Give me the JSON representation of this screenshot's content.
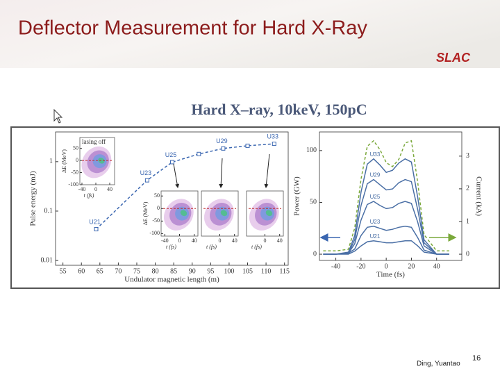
{
  "slide": {
    "title": "Deflector Measurement for Hard X-Ray",
    "logo": "SLAC",
    "figure_title": "Hard X–ray, 10keV, 150pC",
    "author": "Ding, Yuantao",
    "page": 16
  },
  "chart_data": [
    {
      "type": "line",
      "xlabel": "Undulator magnetic length (m)",
      "ylabel": "Pulse energy (mJ)",
      "x": [
        64,
        77.8,
        84.6,
        91.8,
        98.4,
        105,
        112.2
      ],
      "values": [
        0.043,
        0.42,
        0.98,
        1.43,
        1.85,
        2.1,
        2.3
      ],
      "point_labels": [
        "U21",
        "U23",
        "U25",
        null,
        "U29",
        null,
        "U33"
      ],
      "color": "#3a66b0",
      "dashed": true,
      "markers": true,
      "log_y": true,
      "xlim": [
        53,
        116
      ],
      "ylim": [
        0.008,
        4
      ],
      "xticks": [
        55,
        60,
        65,
        70,
        75,
        80,
        85,
        90,
        95,
        100,
        105,
        110,
        115
      ],
      "yticks": [
        0.01,
        0.1,
        1
      ],
      "insets": [
        {
          "label": "lasing off",
          "ylabel": "ΔE (MeV)",
          "xlabel": "t (fs)",
          "xlim": [
            -46,
            54
          ],
          "ylim": [
            -100,
            95
          ],
          "xticks": [
            -40,
            0,
            40
          ],
          "yticks": [
            50,
            0,
            -50,
            -100
          ]
        },
        {
          "ylabel": "ΔE (MeV)",
          "xlabel": "t (fs)",
          "xlim": [
            -50,
            50
          ],
          "ylim": [
            -110,
            70
          ],
          "xticks": [
            -40,
            0,
            40
          ],
          "yticks": [
            50,
            0,
            -50,
            -100
          ]
        },
        {
          "xlabel": "t (fs)",
          "xlim": [
            -50,
            50
          ],
          "ylim": [
            -110,
            70
          ],
          "xticks": [
            0,
            40
          ]
        },
        {
          "xlabel": "t (fs)",
          "xlim": [
            -50,
            50
          ],
          "ylim": [
            -110,
            70
          ],
          "xticks": [
            0,
            40
          ]
        }
      ]
    },
    {
      "type": "line",
      "xlabel": "Time (fs)",
      "ylabel": "Power (GW)",
      "y2label": "Current (kA)",
      "x": [
        -50,
        -40,
        -30,
        -25,
        -20,
        -15,
        -10,
        -5,
        0,
        5,
        10,
        15,
        20,
        25,
        30,
        40,
        50
      ],
      "series": [
        {
          "name": "U33",
          "color": "#4a6fa5",
          "values": [
            0,
            0,
            2,
            18,
            60,
            87,
            92,
            86,
            79,
            81,
            88,
            92,
            89,
            55,
            14,
            0,
            0
          ]
        },
        {
          "name": "U29",
          "color": "#4a6fa5",
          "values": [
            0,
            0,
            1,
            14,
            47,
            68,
            72,
            67,
            62,
            63,
            69,
            72,
            70,
            43,
            11,
            0,
            0
          ]
        },
        {
          "name": "U25",
          "color": "#4a6fa5",
          "values": [
            0,
            0,
            1,
            10,
            33,
            48,
            51,
            47,
            44,
            45,
            49,
            51,
            49,
            31,
            8,
            0,
            0
          ]
        },
        {
          "name": "U23",
          "color": "#4a6fa5",
          "values": [
            0,
            0,
            1,
            5,
            18,
            26,
            27,
            25,
            23,
            24,
            26,
            27,
            26,
            16,
            4,
            0,
            0
          ]
        },
        {
          "name": "U21",
          "color": "#4a6fa5",
          "values": [
            0,
            0,
            0,
            3,
            8,
            12,
            13,
            12,
            11,
            11,
            12,
            13,
            13,
            8,
            2,
            0,
            0
          ]
        },
        {
          "axis": "y2",
          "color": "#7aa83a",
          "dashed": true,
          "values": [
            0.1,
            0.1,
            0.15,
            0.8,
            2.3,
            3.3,
            3.47,
            3.2,
            2.8,
            2.68,
            2.9,
            3.4,
            3.47,
            2.2,
            0.6,
            0.1,
            0.1
          ]
        }
      ],
      "xlim": [
        -53,
        60
      ],
      "ylim": [
        -6,
        118
      ],
      "y2lim": [
        -0.19,
        3.74
      ],
      "xticks": [
        -40,
        -20,
        0,
        20,
        40
      ],
      "yticks": [
        0,
        50,
        100
      ],
      "y2ticks": [
        0,
        1,
        2,
        3
      ]
    }
  ]
}
